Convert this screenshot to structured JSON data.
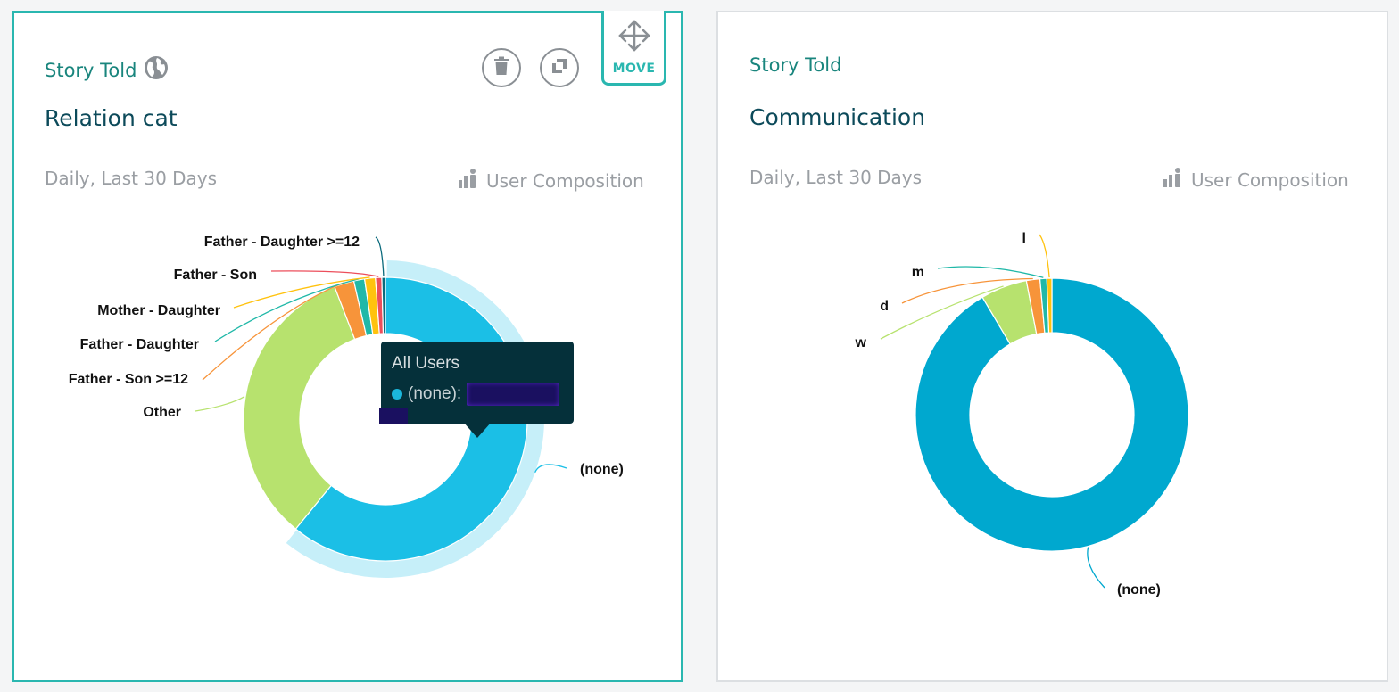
{
  "left_card": {
    "kicker": "Story Told",
    "kicker_icon": "globe-icon",
    "title": "Relation cat",
    "subtitle": "Daily, Last 30 Days",
    "composition_label": "User Composition",
    "composition_icon": "bar-person-icon",
    "delete_icon": "trash-icon",
    "expand_icon": "expand-icon",
    "move_label": "MOVE",
    "move_icon": "move-arrows-icon",
    "tooltip": {
      "series": "All Users",
      "row_label": "(none):",
      "value_redacted": true
    }
  },
  "right_card": {
    "kicker": "Story Told",
    "title": "Communication",
    "subtitle": "Daily, Last 30 Days",
    "composition_label": "User Composition",
    "composition_icon": "bar-person-icon"
  },
  "chart_data": [
    {
      "type": "pie",
      "donut": true,
      "slices": [
        {
          "label": "(none)",
          "value": 59.5,
          "color": "#1bbfe6",
          "hovered": true
        },
        {
          "label": "Other",
          "value": 32.5,
          "color": "#b7e26e"
        },
        {
          "label": "Father - Son >=12",
          "value": 2.2,
          "color": "#f7943a"
        },
        {
          "label": "Father - Daughter",
          "value": 1.2,
          "color": "#20b8a8"
        },
        {
          "label": "Mother - Daughter",
          "value": 1.2,
          "color": "#ffc20e"
        },
        {
          "label": "Father - Son",
          "value": 0.7,
          "color": "#ec4e5b"
        },
        {
          "label": "Father - Daughter >=12",
          "value": 0.4,
          "color": "#0a6a7c"
        }
      ]
    },
    {
      "type": "pie",
      "donut": true,
      "slices": [
        {
          "label": "(none)",
          "value": 91.5,
          "color": "#00a8cf"
        },
        {
          "label": "w",
          "value": 5.5,
          "color": "#b7e26e"
        },
        {
          "label": "d",
          "value": 1.6,
          "color": "#f7943a"
        },
        {
          "label": "m",
          "value": 0.8,
          "color": "#20b8a8"
        },
        {
          "label": "l",
          "value": 0.6,
          "color": "#ffc20e"
        }
      ]
    }
  ],
  "colors": {
    "accent": "#2ab7b0",
    "title": "#0c4a5a",
    "muted": "#9a9ea3",
    "tooltip_bg": "#05303a"
  }
}
